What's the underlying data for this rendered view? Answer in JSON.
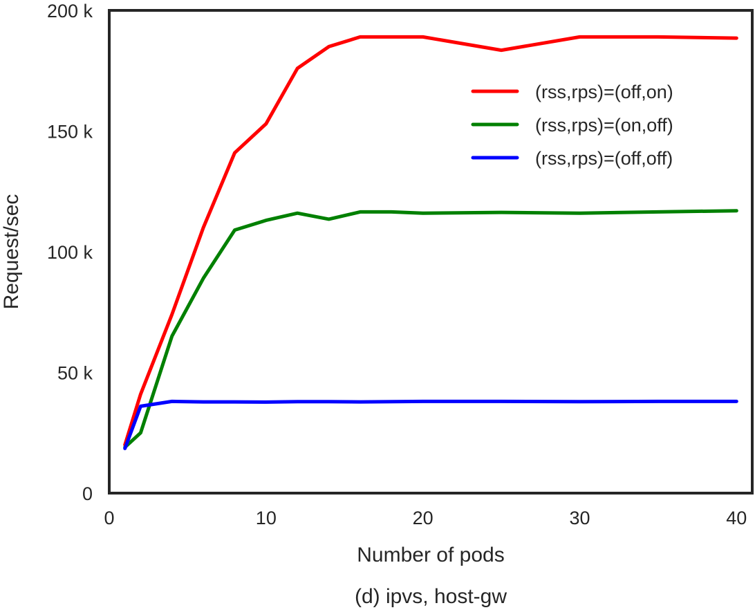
{
  "chart_data": {
    "type": "line",
    "xlabel": "Number of pods",
    "ylabel": "Request/sec",
    "caption": "(d) ipvs, host-gw",
    "xlim": [
      0,
      41
    ],
    "ylim": [
      0,
      200000
    ],
    "xticks": [
      0,
      10,
      20,
      30,
      40
    ],
    "xtick_labels": [
      "0",
      "10",
      "20",
      "30",
      "40"
    ],
    "yticks": [
      0,
      50000,
      100000,
      150000,
      200000
    ],
    "ytick_labels": [
      "0",
      "50 k",
      "100 k",
      "150 k",
      "200 k"
    ],
    "grid": false,
    "legend_position": "upper-right",
    "series": [
      {
        "name": "(rss,rps)=(off,on)",
        "color": "#ff0000",
        "x": [
          1,
          2,
          4,
          6,
          8,
          10,
          12,
          14,
          16,
          18,
          20,
          25,
          30,
          35,
          40
        ],
        "y": [
          20000,
          41000,
          74000,
          110000,
          141000,
          153000,
          176000,
          185000,
          189000,
          189000,
          189000,
          183500,
          189000,
          189000,
          188500
        ]
      },
      {
        "name": "(rss,rps)=(on,off)",
        "color": "#008000",
        "x": [
          1,
          2,
          4,
          6,
          8,
          10,
          12,
          14,
          16,
          18,
          20,
          25,
          30,
          35,
          40
        ],
        "y": [
          19000,
          25000,
          65000,
          89000,
          109000,
          113000,
          116000,
          113500,
          116500,
          116500,
          116000,
          116300,
          116000,
          116500,
          117000
        ]
      },
      {
        "name": "(rss,rps)=(off,off)",
        "color": "#0000ff",
        "x": [
          1,
          2,
          4,
          6,
          8,
          10,
          12,
          14,
          16,
          18,
          20,
          25,
          30,
          35,
          40
        ],
        "y": [
          18500,
          36000,
          38000,
          37800,
          37800,
          37700,
          37900,
          37900,
          37800,
          37900,
          38000,
          38000,
          37900,
          38000,
          38000
        ]
      }
    ]
  }
}
